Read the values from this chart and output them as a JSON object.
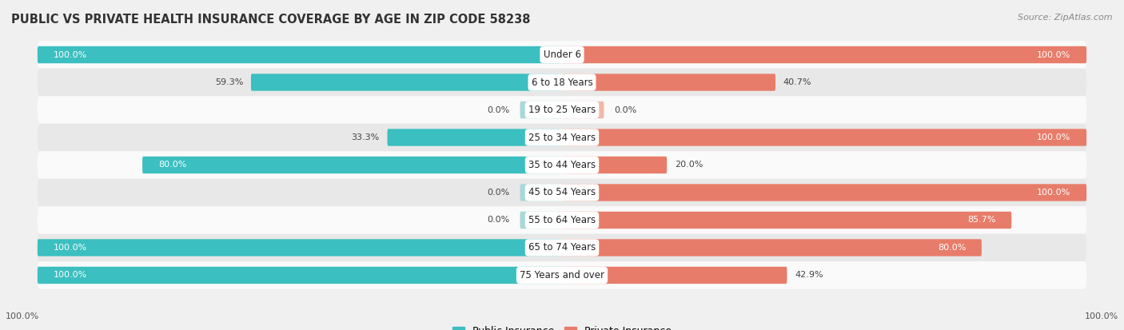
{
  "title": "PUBLIC VS PRIVATE HEALTH INSURANCE COVERAGE BY AGE IN ZIP CODE 58238",
  "source": "Source: ZipAtlas.com",
  "categories": [
    "Under 6",
    "6 to 18 Years",
    "19 to 25 Years",
    "25 to 34 Years",
    "35 to 44 Years",
    "45 to 54 Years",
    "55 to 64 Years",
    "65 to 74 Years",
    "75 Years and over"
  ],
  "public_values": [
    100.0,
    59.3,
    0.0,
    33.3,
    80.0,
    0.0,
    0.0,
    100.0,
    100.0
  ],
  "private_values": [
    100.0,
    40.7,
    0.0,
    100.0,
    20.0,
    100.0,
    85.7,
    80.0,
    42.9
  ],
  "public_color": "#3bbfc0",
  "private_color": "#e87c6a",
  "public_color_light": "#a8d8d8",
  "private_color_light": "#f0b8a8",
  "bar_height": 0.62,
  "bg_color": "#f0f0f0",
  "row_color_odd": "#e8e8e8",
  "row_color_even": "#fafafa",
  "title_fontsize": 10.5,
  "label_fontsize": 8.5,
  "value_fontsize": 8.0,
  "source_fontsize": 8.0,
  "footer_fontsize": 8.0
}
